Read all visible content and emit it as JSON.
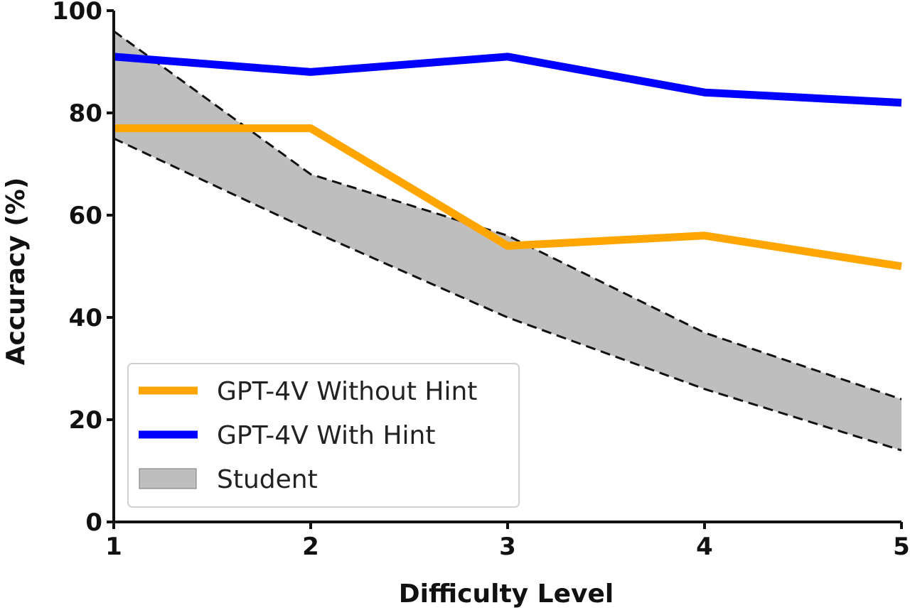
{
  "chart_data": {
    "type": "line",
    "title": "",
    "xlabel": "Difficulty Level",
    "ylabel": "Accuracy (%)",
    "x": [
      1,
      2,
      3,
      4,
      5
    ],
    "x_ticks": [
      "1",
      "2",
      "3",
      "4",
      "5"
    ],
    "y_ticks": [
      "0",
      "20",
      "40",
      "60",
      "80",
      "100"
    ],
    "xlim": [
      1,
      5
    ],
    "ylim": [
      0,
      100
    ],
    "grid": false,
    "legend_position": "bottom-left",
    "series": [
      {
        "name": "GPT-4V Without Hint",
        "type": "line",
        "color": "#FFA500",
        "values": [
          77,
          77,
          54,
          56,
          50
        ]
      },
      {
        "name": "GPT-4V With Hint",
        "type": "line",
        "color": "#0000FF",
        "values": [
          91,
          88,
          91,
          84,
          82
        ]
      }
    ],
    "band": {
      "name": "Student",
      "color": "#BEBEBE",
      "edge_color": "#111111",
      "upper": [
        96,
        68,
        56,
        37,
        24
      ],
      "lower": [
        75,
        57,
        40,
        26,
        14
      ]
    }
  }
}
